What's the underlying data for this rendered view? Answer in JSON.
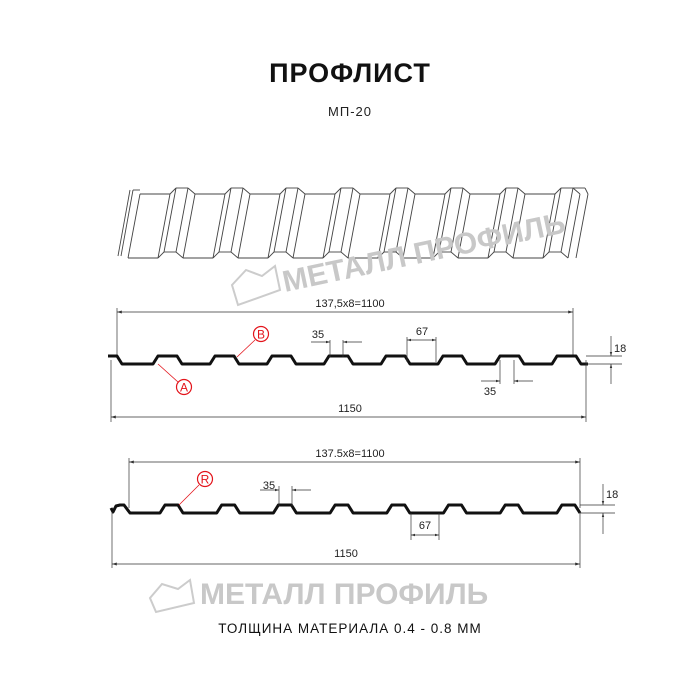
{
  "header": {
    "title": "ПРОФЛИСТ",
    "subtitle": "МП-20"
  },
  "watermark": {
    "text": "МЕТАЛЛ ПРОФИЛЬ",
    "color": "#c8c8c8"
  },
  "profile_a": {
    "pitch_label": "137,5x8=1100",
    "width_label": "1150",
    "top_width_label": "35",
    "bottom_width_label": "67",
    "bottom_top_label": "35",
    "height_label": "18",
    "marker_a": "A",
    "marker_b": "B"
  },
  "profile_b": {
    "pitch_label": "137.5x8=1100",
    "width_label": "1150",
    "top_width_label": "35",
    "bottom_width_label": "67",
    "height_label": "18",
    "marker_r": "R"
  },
  "footer": {
    "thickness": "ТОЛЩИНА МАТЕРИАЛА 0.4 - 0.8 ММ"
  },
  "colors": {
    "profile": "#111111",
    "marker": "#e3141b",
    "dimension": "#333333"
  }
}
